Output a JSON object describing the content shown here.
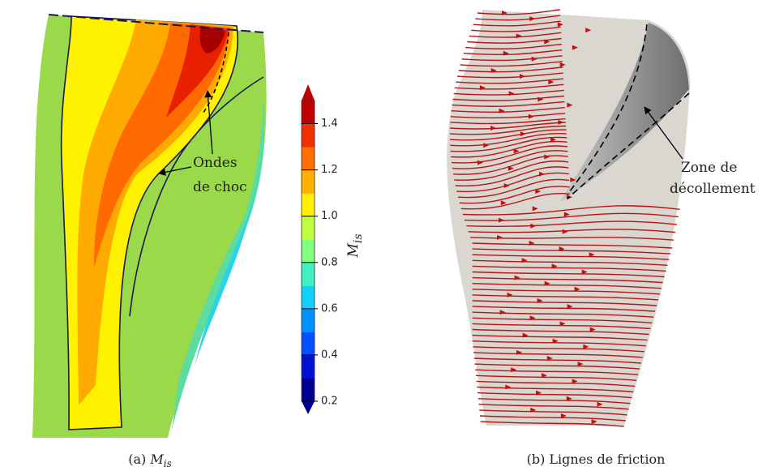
{
  "panel_a": {
    "caption_label": "(a)",
    "caption_symbol": "M",
    "caption_subscript": "is",
    "annotation_line1": "Ondes",
    "annotation_line2": "de choc"
  },
  "colorbar": {
    "title_symbol": "M",
    "title_subscript": "is",
    "lim": [
      0.2,
      1.5
    ],
    "ticks": [
      0.2,
      0.4,
      0.6,
      0.8,
      {
        "value": 1,
        "label": "1.0"
      },
      1.2,
      1.4
    ],
    "colors": [
      "#00008f",
      "#0010d0",
      "#0050ff",
      "#0090ff",
      "#10d0ff",
      "#40f0c0",
      "#80ff80",
      "#c0ff40",
      "#fff000",
      "#ffb000",
      "#ff7000",
      "#f03000",
      "#c00000"
    ]
  },
  "panel_b": {
    "caption_label": "(b)",
    "caption_text": "Lignes de friction",
    "annotation_line1": "Zone de",
    "annotation_line2": "décollement"
  }
}
